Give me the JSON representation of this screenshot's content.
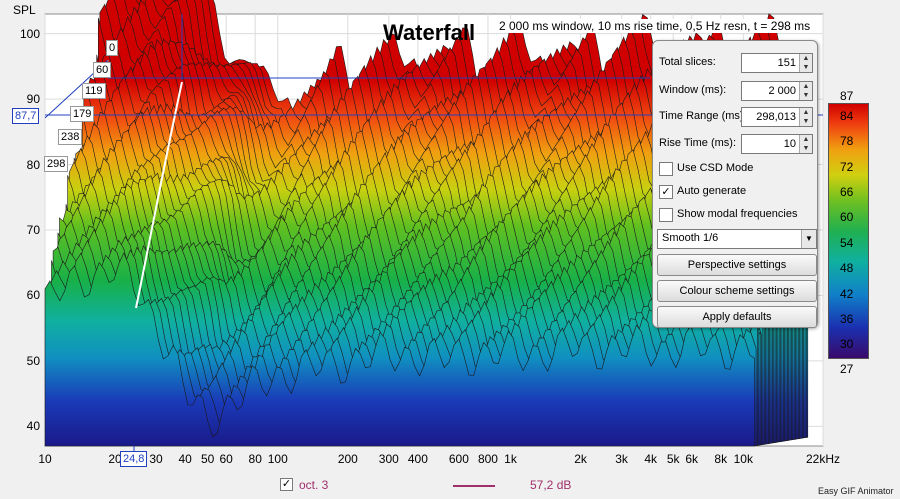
{
  "header": {
    "y_unit": "SPL",
    "title": "Waterfall",
    "info": "2 000 ms window, 10 ms rise time,  0,5 Hz resn, t = 298 ms"
  },
  "y_axis_ticks": [
    "100",
    "90",
    "80",
    "70",
    "60",
    "50",
    "40"
  ],
  "x_axis_ticks": [
    "10",
    "20",
    "30",
    "40",
    "50",
    "60",
    "80",
    "100",
    "200",
    "300",
    "400",
    "600",
    "800",
    "1k",
    "2k",
    "3k",
    "4k",
    "5k",
    "6k",
    "8k",
    "10k",
    "22kHz"
  ],
  "depth_labels": [
    "0",
    "60",
    "119",
    "179",
    "238",
    "298"
  ],
  "far_depth_labels": [
    "0",
    "298"
  ],
  "cursor": {
    "spl_value": "87,7",
    "freq_value": "24,8"
  },
  "panel": {
    "total_slices": {
      "label": "Total slices:",
      "value": "151"
    },
    "window": {
      "label": "Window (ms):",
      "value": "2 000"
    },
    "time_range": {
      "label": "Time Range (ms):",
      "value": "298,013"
    },
    "rise_time": {
      "label": "Rise Time (ms):",
      "value": "10"
    },
    "use_csd": {
      "label": "Use CSD Mode",
      "checked": false
    },
    "auto_generate": {
      "label": "Auto generate",
      "checked": true,
      "mark": "✓"
    },
    "modal": {
      "label": "Show modal frequencies",
      "checked": false
    },
    "smoothing": {
      "value": "Smooth 1/6"
    },
    "perspective_button": "Perspective settings",
    "colour_button": "Colour scheme settings",
    "defaults_button": "Apply defaults"
  },
  "colour_scale": {
    "max": "87",
    "min": "27",
    "ticks": [
      "84",
      "78",
      "72",
      "66",
      "60",
      "54",
      "48",
      "42",
      "36",
      "30"
    ]
  },
  "legend": {
    "checked": true,
    "mark": "✓",
    "label": "oct. 3",
    "value": "57,2 dB",
    "color": "#a0306c"
  },
  "credit": "Easy GIF Animator",
  "colors": {
    "accent": "#2040c0",
    "hot": "#e00000",
    "cool": "#1a1a8a"
  },
  "chart_data": {
    "type": "area",
    "title": "Waterfall",
    "ylabel": "SPL",
    "xlabel": "",
    "x_scale": "log",
    "xlim": [
      10,
      22000
    ],
    "ylim": [
      37,
      103
    ],
    "z_label_values_ms": [
      0,
      60,
      119,
      179,
      238,
      298
    ],
    "front_slice": {
      "x": [
        10,
        15,
        20,
        25,
        30,
        35,
        40,
        50,
        60,
        80,
        100,
        150,
        200,
        300,
        400,
        500,
        600,
        800,
        1000,
        2000,
        3000,
        5000,
        8000,
        10000,
        15000
      ],
      "y": [
        58,
        62,
        63,
        60,
        55,
        50,
        44,
        40,
        42,
        45,
        47,
        48,
        49,
        50,
        50,
        49,
        50,
        50,
        50,
        51,
        51,
        51,
        51,
        51,
        50
      ]
    },
    "back_slice_peak": {
      "x": 40,
      "y": 88
    }
  }
}
